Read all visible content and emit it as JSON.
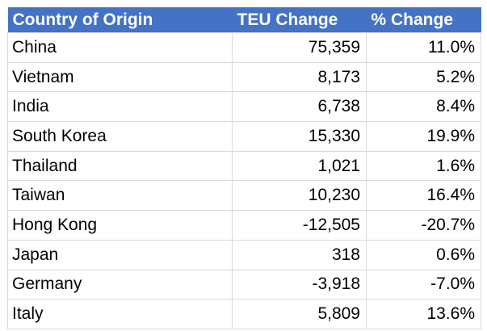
{
  "colors": {
    "header_bg": "#4472C4",
    "header_text": "#FFFFFF",
    "gridline": "#D9D9D9",
    "body_text": "#000000",
    "page_bg": "#FFFFFF"
  },
  "chart_data": {
    "type": "table",
    "columns": [
      "Country of Origin",
      "TEU Change",
      "% Change"
    ],
    "rows": [
      [
        "China",
        "75,359",
        "11.0%"
      ],
      [
        "Vietnam",
        "8,173",
        "5.2%"
      ],
      [
        "India",
        "6,738",
        "8.4%"
      ],
      [
        "South Korea",
        "15,330",
        "19.9%"
      ],
      [
        "Thailand",
        "1,021",
        "1.6%"
      ],
      [
        "Taiwan",
        "10,230",
        "16.4%"
      ],
      [
        "Hong Kong",
        "-12,505",
        "-20.7%"
      ],
      [
        "Japan",
        "318",
        "0.6%"
      ],
      [
        "Germany",
        "-3,918",
        "-7.0%"
      ],
      [
        "Italy",
        "5,809",
        "13.6%"
      ]
    ],
    "numeric": {
      "teu_change": [
        75359,
        8173,
        6738,
        15330,
        1021,
        10230,
        -12505,
        318,
        -3918,
        5809
      ],
      "pct_change": [
        11.0,
        5.2,
        8.4,
        19.9,
        1.6,
        16.4,
        -20.7,
        0.6,
        -7.0,
        13.6
      ]
    },
    "layout": {
      "header_style": "solid-blue-white-bold-text",
      "grid": true,
      "country_align": "left",
      "number_align": "right"
    }
  }
}
